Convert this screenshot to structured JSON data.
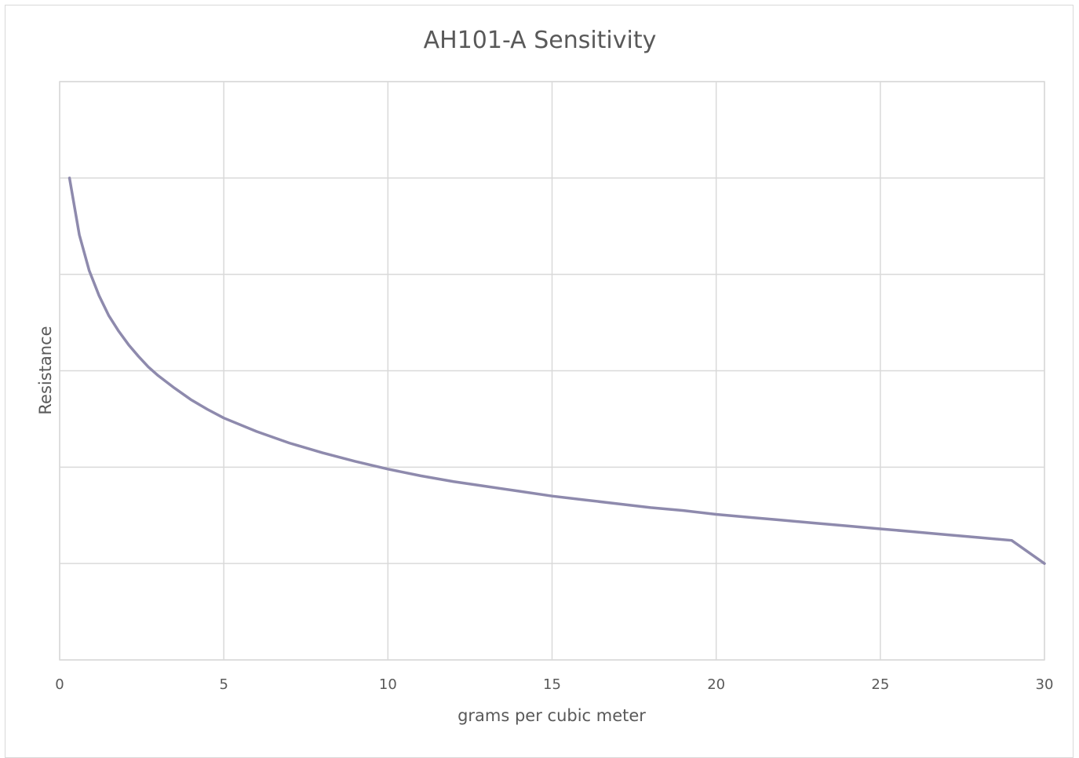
{
  "chart_data": {
    "type": "line",
    "title": "AH101-A Sensitivity",
    "xlabel": "grams per cubic meter",
    "ylabel": "Resistance",
    "xlim": [
      0,
      30
    ],
    "x_ticks": [
      0,
      5,
      10,
      15,
      20,
      25,
      30
    ],
    "x_tick_labels": [
      "0",
      "5",
      "10",
      "15",
      "20",
      "25",
      "30"
    ],
    "ylim": [
      0,
      6
    ],
    "y_ticks": [
      0,
      1,
      2,
      3,
      4,
      5,
      6
    ],
    "y_tick_labels_visible": false,
    "grid": true,
    "legend": "none",
    "series": [
      {
        "color": "#8e8aad",
        "x": [
          0.3,
          0.6,
          0.9,
          1.2,
          1.5,
          1.8,
          2.1,
          2.4,
          2.7,
          3.0,
          3.5,
          4.0,
          4.5,
          5.0,
          6.0,
          7.0,
          8.0,
          9.0,
          10.0,
          11.0,
          12.0,
          13.0,
          14.0,
          15.0,
          16.0,
          17.0,
          18.0,
          19.0,
          20.0,
          21.0,
          22.0,
          23.0,
          24.0,
          25.0,
          26.0,
          27.0,
          28.0,
          29.0,
          30.0
        ],
        "y": [
          5.0,
          4.41,
          4.04,
          3.78,
          3.57,
          3.41,
          3.27,
          3.15,
          3.04,
          2.95,
          2.82,
          2.7,
          2.6,
          2.51,
          2.37,
          2.25,
          2.15,
          2.06,
          1.98,
          1.91,
          1.85,
          1.8,
          1.75,
          1.7,
          1.66,
          1.62,
          1.58,
          1.55,
          1.51,
          1.48,
          1.45,
          1.42,
          1.39,
          1.36,
          1.33,
          1.3,
          1.27,
          1.24,
          1.0
        ]
      }
    ]
  }
}
